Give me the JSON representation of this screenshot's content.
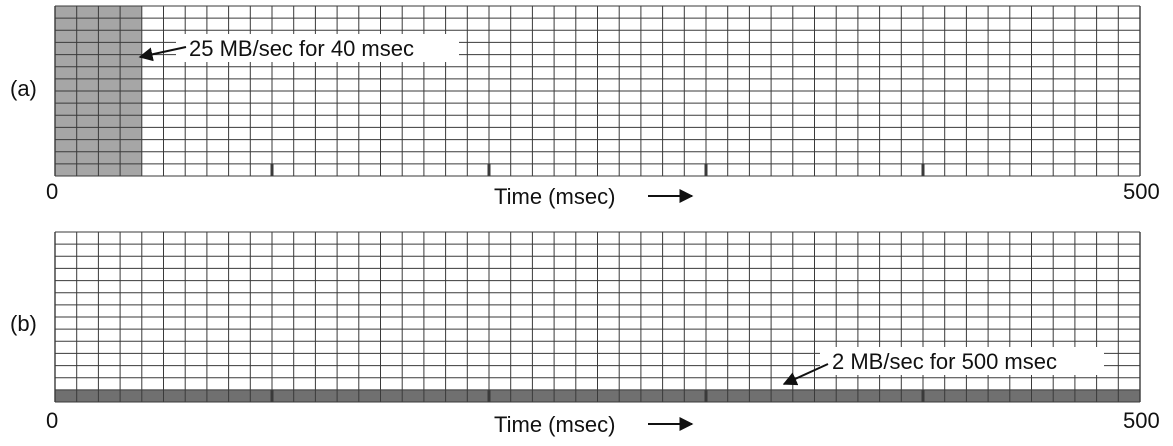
{
  "panel_a": {
    "label": "(a)",
    "annotation": "25 MB/sec for 40 msec",
    "burst_ms": [
      0,
      40
    ],
    "axis_start": "0",
    "axis_end": "500",
    "axis_title": "Time (msec)"
  },
  "panel_b": {
    "label": "(b)",
    "annotation": "2 MB/sec for 500 msec",
    "burst_ms": [
      0,
      500
    ],
    "axis_start": "0",
    "axis_end": "500",
    "axis_title": "Time (msec)"
  },
  "grid": {
    "time_max_ms": 500,
    "column_ms": 10,
    "major_tick_ms": [
      100,
      200,
      300,
      400
    ],
    "rows": 14
  },
  "colors": {
    "grid_line": "#3a3a3a",
    "burst_fill_a": "#a6a6a6",
    "burst_fill_b": "#707070",
    "background": "#ffffff"
  }
}
